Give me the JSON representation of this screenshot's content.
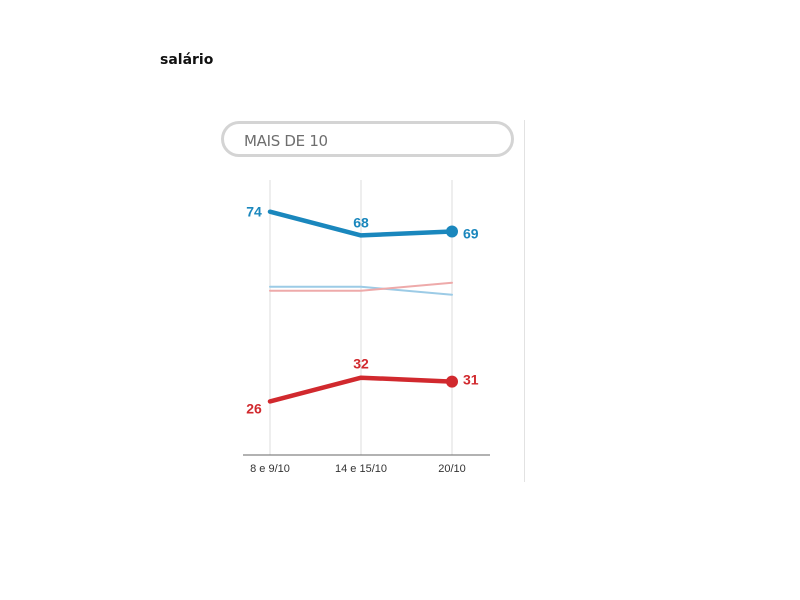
{
  "heading": "salário",
  "filter_label": "MAIS DE 10",
  "chart_data": {
    "type": "line",
    "x": [
      "8 e 9/10",
      "14 e 15/10",
      "20/10"
    ],
    "series": [
      {
        "values": [
          74,
          68,
          69
        ],
        "color": "#1a87bd",
        "labels": [
          "74",
          "68",
          "69"
        ]
      },
      {
        "values": [
          26,
          32,
          31
        ],
        "color": "#d1292e",
        "labels": [
          "26",
          "32",
          "31"
        ]
      },
      {
        "values": [
          55,
          55,
          53
        ],
        "color": "#9ccbe6",
        "labels": []
      },
      {
        "values": [
          54,
          54,
          56
        ],
        "color": "#eeaaaa",
        "labels": []
      }
    ],
    "ylim": [
      10,
      80
    ],
    "grid": "vertical"
  }
}
